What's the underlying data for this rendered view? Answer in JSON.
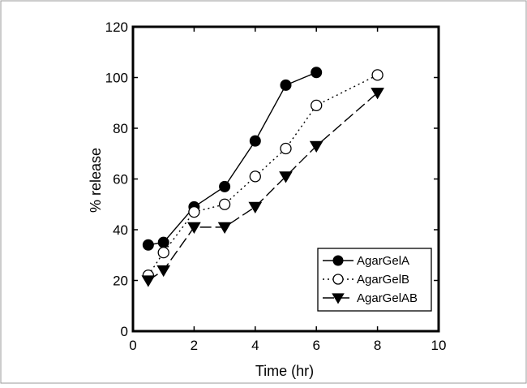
{
  "chart_data": {
    "type": "line",
    "xlabel": "Time (hr)",
    "ylabel": "% release",
    "xlim": [
      0,
      10
    ],
    "ylim": [
      0,
      120
    ],
    "xticks": [
      0,
      2,
      4,
      6,
      8,
      10
    ],
    "yticks": [
      0,
      20,
      40,
      60,
      80,
      100,
      120
    ],
    "grid": false,
    "legend_position": "bottom-right",
    "series": [
      {
        "name": "AgarGelA",
        "marker": "filled-circle",
        "line_style": "solid",
        "color": "#000000",
        "x": [
          0.5,
          1,
          2,
          3,
          4,
          5,
          6
        ],
        "y": [
          34,
          35,
          49,
          57,
          75,
          97,
          102
        ]
      },
      {
        "name": "AgarGelB",
        "marker": "open-circle",
        "line_style": "dotted",
        "color": "#000000",
        "x": [
          0.5,
          1,
          2,
          3,
          4,
          5,
          6,
          8
        ],
        "y": [
          22,
          31,
          47,
          50,
          61,
          72,
          89,
          101
        ]
      },
      {
        "name": "AgarGelAB",
        "marker": "filled-triangle-down",
        "line_style": "dashed",
        "color": "#000000",
        "x": [
          0.5,
          1,
          2,
          3,
          4,
          5,
          6,
          8
        ],
        "y": [
          20,
          24,
          41,
          41,
          49,
          61,
          73,
          94
        ]
      }
    ]
  }
}
